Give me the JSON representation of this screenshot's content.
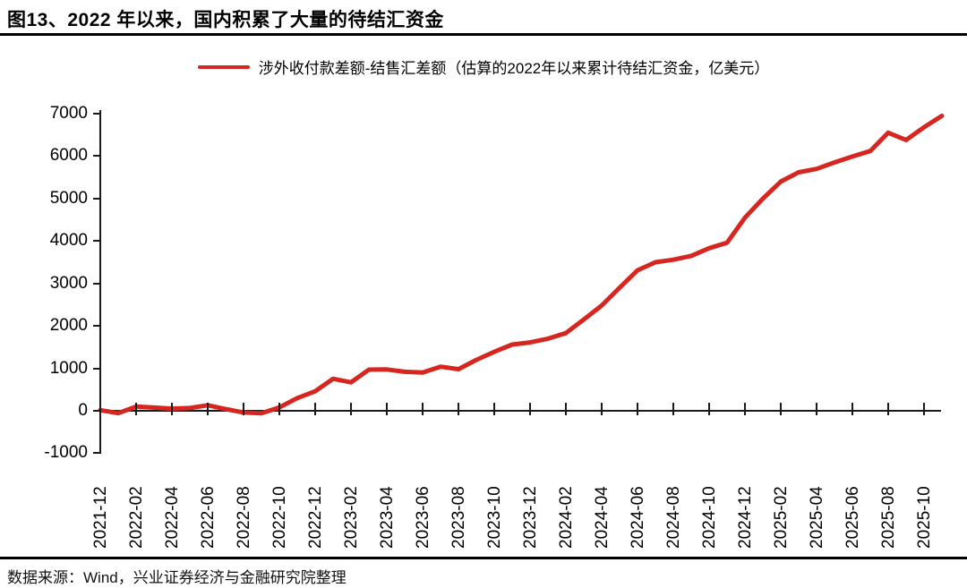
{
  "chart_data": {
    "type": "line",
    "title": "图13、2022 年以来，国内积累了大量的待结汇资金",
    "legend_position": "top-center",
    "grid": false,
    "ylim": [
      -1000,
      7000
    ],
    "y_ticks": [
      -1000,
      0,
      1000,
      2000,
      3000,
      4000,
      5000,
      6000,
      7000
    ],
    "x_tick_labels": [
      "2021-12",
      "2022-02",
      "2022-04",
      "2022-06",
      "2022-08",
      "2022-10",
      "2022-12",
      "2023-02",
      "2023-04",
      "2023-06",
      "2023-08",
      "2023-10",
      "2023-12",
      "2024-02",
      "2024-04",
      "2024-06",
      "2024-08",
      "2024-10",
      "2024-12",
      "2025-02",
      "2025-04",
      "2025-06",
      "2025-08",
      "2025-10"
    ],
    "series": [
      {
        "name": "涉外收付款差额-结售汇差额（估算的2022年以来累计待结汇资金，亿美元）",
        "color": "#d7261f",
        "x": [
          "2021-12",
          "2022-01",
          "2022-02",
          "2022-03",
          "2022-04",
          "2022-05",
          "2022-06",
          "2022-07",
          "2022-08",
          "2022-09",
          "2022-10",
          "2022-11",
          "2022-12",
          "2023-01",
          "2023-02",
          "2023-03",
          "2023-04",
          "2023-05",
          "2023-06",
          "2023-07",
          "2023-08",
          "2023-09",
          "2023-10",
          "2023-11",
          "2023-12",
          "2024-01",
          "2024-02",
          "2024-03",
          "2024-04",
          "2024-05",
          "2024-06",
          "2024-07",
          "2024-08",
          "2024-09",
          "2024-10",
          "2024-11",
          "2024-12",
          "2025-01",
          "2025-02",
          "2025-03",
          "2025-04",
          "2025-05",
          "2025-06",
          "2025-07",
          "2025-08",
          "2025-09",
          "2025-10",
          "2025-11"
        ],
        "values": [
          15,
          -55,
          100,
          75,
          50,
          65,
          130,
          40,
          -40,
          -60,
          80,
          300,
          460,
          755,
          670,
          970,
          975,
          920,
          900,
          1040,
          980,
          1200,
          1390,
          1560,
          1610,
          1700,
          1830,
          2150,
          2480,
          2900,
          3310,
          3500,
          3560,
          3650,
          3830,
          3960,
          4550,
          5000,
          5400,
          5620,
          5700,
          5850,
          5990,
          6120,
          6550,
          6380,
          6680,
          6950
        ]
      }
    ]
  },
  "footer": {
    "text": "数据来源：Wind，兴业证券经济与金融研究院整理"
  },
  "colors": {
    "line_red": "#d7261f",
    "axis_black": "#1a1a1a"
  }
}
